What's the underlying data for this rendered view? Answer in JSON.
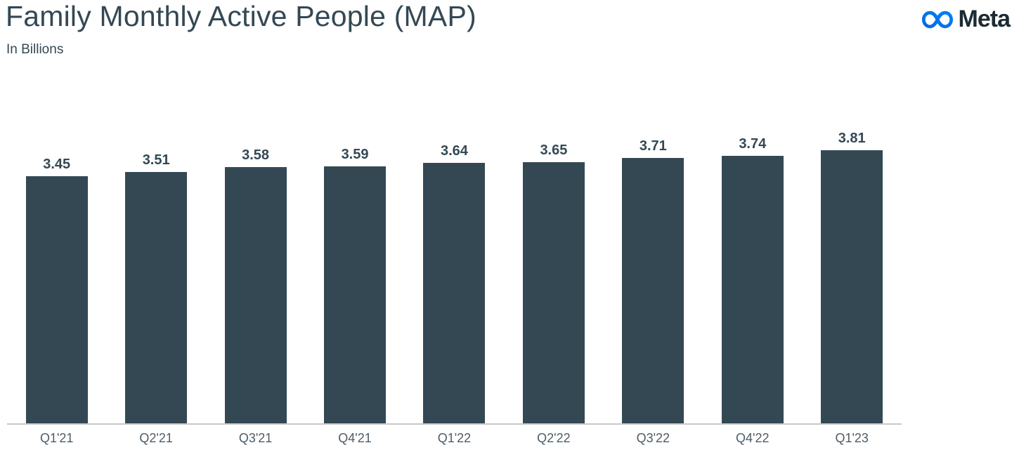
{
  "header": {
    "title": "Family Monthly Active People (MAP)",
    "subtitle": "In Billions",
    "logo_text": "Meta"
  },
  "colors": {
    "ink": "#344854",
    "bar": "#344854",
    "axis_label": "#4c5d68",
    "axis_line": "#c9c9c9",
    "logo_ink": "#1c2b33",
    "logo_blue_start": "#0668E1",
    "logo_blue_end": "#0081FB"
  },
  "chart_data": {
    "type": "bar",
    "categories": [
      "Q1'21",
      "Q2'21",
      "Q3'21",
      "Q4'21",
      "Q1'22",
      "Q2'22",
      "Q3'22",
      "Q4'22",
      "Q1'23"
    ],
    "values": [
      3.45,
      3.51,
      3.58,
      3.59,
      3.64,
      3.65,
      3.71,
      3.74,
      3.81
    ],
    "title": "Family Monthly Active People (MAP)",
    "subtitle": "In Billions",
    "xlabel": "",
    "ylabel": "In Billions",
    "ylim": [
      0,
      3.9
    ],
    "grid": false,
    "legend": false,
    "value_labels": true,
    "value_label_format": "0.00",
    "bar_color": "#344854"
  }
}
